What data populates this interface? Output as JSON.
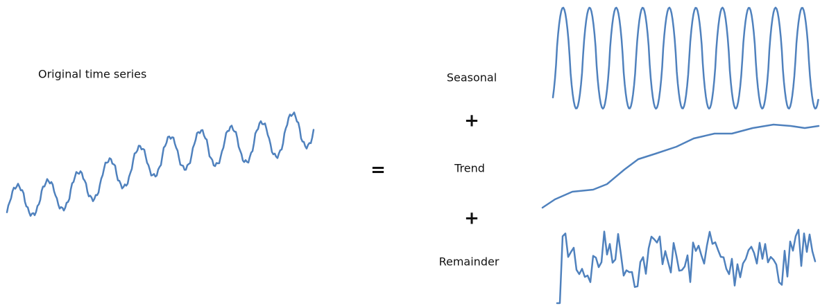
{
  "original": {
    "label": "Original time series"
  },
  "equals": "=",
  "components": [
    {
      "label": "Seasonal"
    },
    {
      "operator": "+"
    },
    {
      "label": "Trend"
    },
    {
      "operator": "+"
    },
    {
      "label": "Remainder"
    }
  ]
}
